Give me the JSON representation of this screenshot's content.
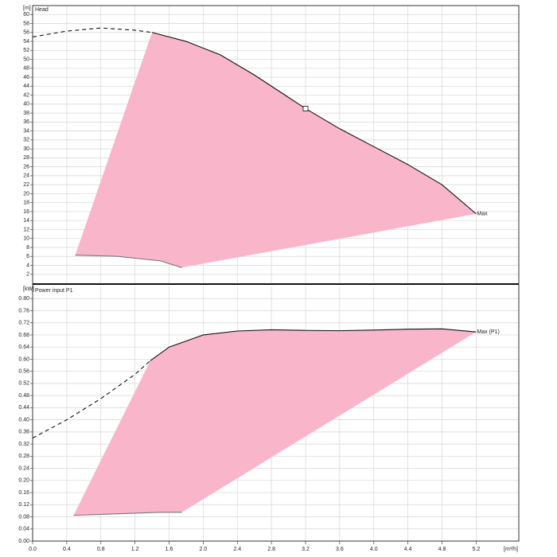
{
  "chart_data": [
    {
      "type": "line",
      "title": "Head",
      "y_label": "[m]",
      "ylim": [
        0,
        62
      ],
      "yticks": [
        2,
        4,
        6,
        8,
        10,
        12,
        14,
        16,
        18,
        20,
        22,
        24,
        26,
        28,
        30,
        32,
        34,
        36,
        38,
        40,
        42,
        44,
        46,
        48,
        50,
        52,
        54,
        56,
        58,
        60
      ],
      "grid": true,
      "fill": "#f9b6cb",
      "series": [
        {
          "x": [
            0,
            0.4,
            0.8,
            1.2,
            1.4
          ],
          "values": [
            55,
            56.3,
            57,
            56.5,
            56
          ],
          "color": "#111111",
          "dashed": true
        },
        {
          "name": "Max",
          "x": [
            1.4,
            1.8,
            2.2,
            2.6,
            3.0,
            3.2,
            3.6,
            4.0,
            4.4,
            4.8,
            5.2
          ],
          "values": [
            56,
            54,
            51,
            46.5,
            41.5,
            39,
            34.5,
            30.5,
            26.5,
            22,
            15.5
          ],
          "color": "#111111",
          "dashed": false
        },
        {
          "x": [
            0.5,
            1.0,
            1.5,
            1.75
          ],
          "values": [
            6.3,
            6,
            5,
            3.5
          ],
          "color": "#777777",
          "dashed": false
        }
      ],
      "marker": {
        "x": 3.2,
        "y": 39
      }
    },
    {
      "type": "line",
      "title": "Power input P1",
      "y_label": "[kW]",
      "x_label": "[m³/h]",
      "xlim": [
        0,
        5.7
      ],
      "xticks": [
        {
          "value": 0,
          "label": "0.0"
        },
        0.4,
        0.8,
        1.2,
        1.6,
        {
          "value": 2,
          "label": "2.0"
        },
        2.4,
        2.8,
        3.2,
        3.6,
        {
          "value": 4,
          "label": "4.0"
        },
        4.4,
        4.8,
        5.2
      ],
      "ylim": [
        0,
        0.84
      ],
      "yticks": [
        {
          "value": 0,
          "label": "0.00"
        },
        {
          "value": 0.04,
          "label": "0.04"
        },
        {
          "value": 0.08,
          "label": "0.08"
        },
        {
          "value": 0.12,
          "label": "0.12"
        },
        {
          "value": 0.16,
          "label": "0.16"
        },
        {
          "value": 0.2,
          "label": "0.20"
        },
        {
          "value": 0.24,
          "label": "0.24"
        },
        {
          "value": 0.28,
          "label": "0.28"
        },
        {
          "value": 0.32,
          "label": "0.32"
        },
        {
          "value": 0.36,
          "label": "0.36"
        },
        {
          "value": 0.4,
          "label": "0.40"
        },
        {
          "value": 0.44,
          "label": "0.44"
        },
        {
          "value": 0.48,
          "label": "0.48"
        },
        {
          "value": 0.52,
          "label": "0.52"
        },
        {
          "value": 0.56,
          "label": "0.56"
        },
        {
          "value": 0.6,
          "label": "0.60"
        },
        {
          "value": 0.64,
          "label": "0.64"
        },
        {
          "value": 0.68,
          "label": "0.68"
        },
        {
          "value": 0.72,
          "label": "0.72"
        },
        {
          "value": 0.76,
          "label": "0.76"
        },
        {
          "value": 0.8,
          "label": "0.80"
        }
      ],
      "grid": true,
      "fill": "#f9b6cb",
      "series": [
        {
          "x": [
            0,
            0.4,
            0.8,
            1.2,
            1.38
          ],
          "values": [
            0.34,
            0.4,
            0.47,
            0.55,
            0.595
          ],
          "color": "#111111",
          "dashed": true
        },
        {
          "name": "Max (P1)",
          "x": [
            1.38,
            1.6,
            2.0,
            2.4,
            2.8,
            3.2,
            3.6,
            4.0,
            4.4,
            4.8,
            5.2
          ],
          "values": [
            0.595,
            0.64,
            0.68,
            0.693,
            0.697,
            0.695,
            0.694,
            0.696,
            0.699,
            0.7,
            0.69
          ],
          "color": "#111111",
          "dashed": false
        },
        {
          "x": [
            0.48,
            1.0,
            1.5,
            1.75
          ],
          "values": [
            0.085,
            0.09,
            0.095,
            0.095
          ],
          "color": "#777777",
          "dashed": false
        }
      ]
    }
  ]
}
